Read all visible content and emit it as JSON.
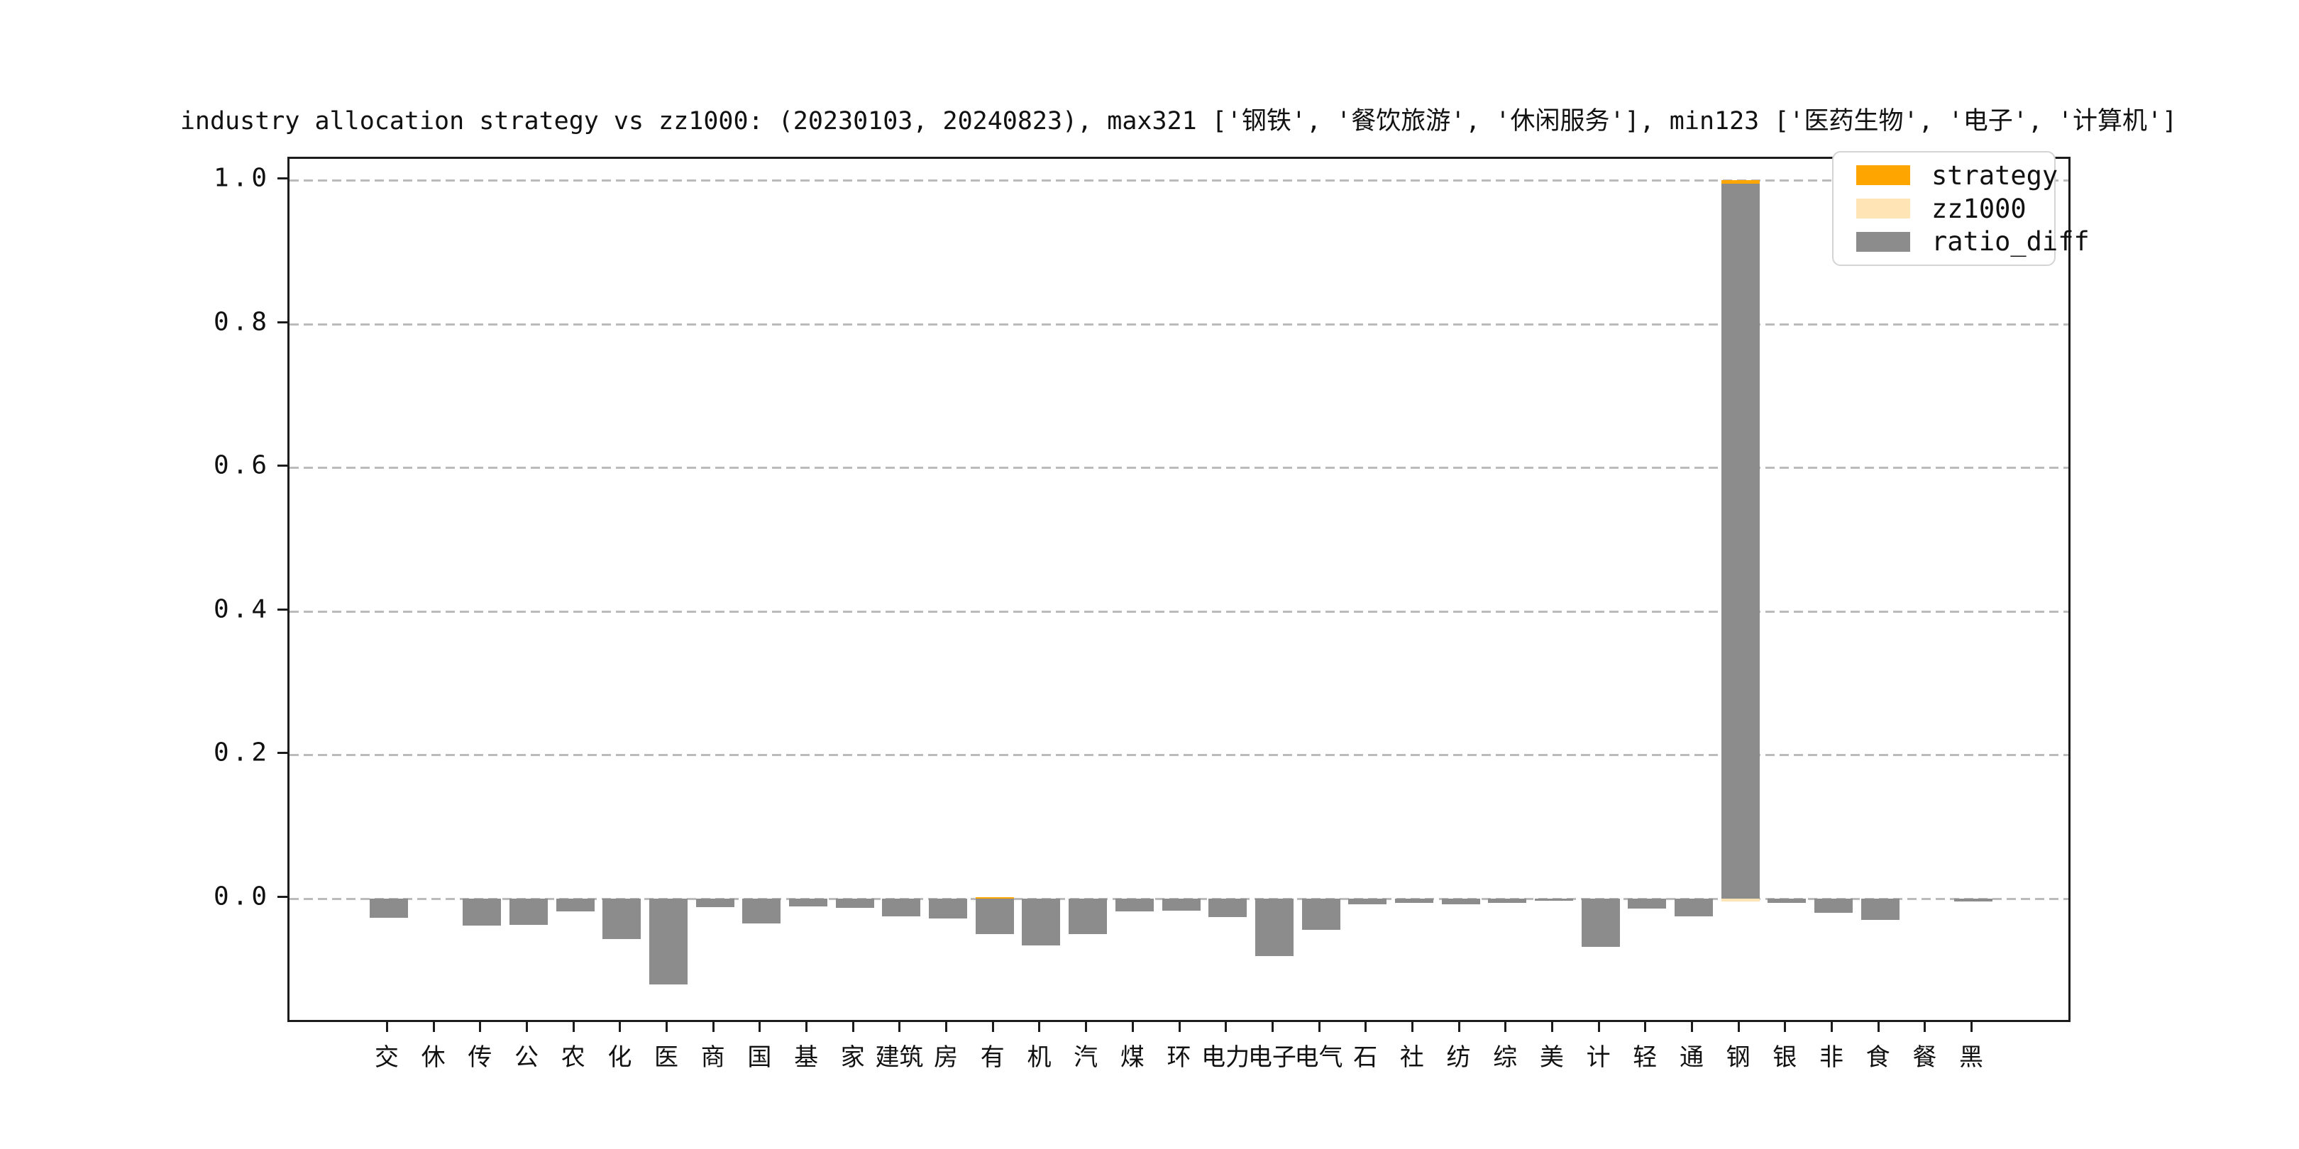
{
  "title": "industry allocation strategy vs zz1000: (20230103, 20240823), max321 ['钢铁', '餐饮旅游', '休闲服务'], min123 ['医药生物', '电子', '计算机']",
  "legend": {
    "items": [
      {
        "label": "strategy",
        "color": "#FFA500"
      },
      {
        "label": "zz1000",
        "color": "#FFE4B5"
      },
      {
        "label": "ratio_diff",
        "color": "#8c8c8c"
      }
    ]
  },
  "axis": {
    "yticks": [
      "0.0",
      "0.2",
      "0.4",
      "0.6",
      "0.8",
      "1.0"
    ],
    "grid_color": "#bbbbbb",
    "spine_color": "#1c1c1c"
  },
  "chart_data": {
    "type": "bar",
    "title": "industry allocation strategy vs zz1000: (20230103, 20240823), max321 ['钢铁', '餐饮旅游', '休闲服务'], min123 ['医药生物', '电子', '计算机']",
    "categories": [
      "交",
      "休",
      "传",
      "公",
      "农",
      "化",
      "医",
      "商",
      "国",
      "基",
      "家",
      "建筑",
      "房",
      "有",
      "机",
      "汽",
      "煤",
      "环",
      "电力",
      "电子",
      "电气",
      "石",
      "社",
      "纺",
      "综",
      "美",
      "计",
      "轻",
      "通",
      "钢",
      "银",
      "非",
      "食",
      "餐",
      "黑"
    ],
    "series": [
      {
        "name": "strategy",
        "color": "#FFA500",
        "values": [
          0,
          0,
          0,
          0,
          0,
          0,
          0,
          0,
          0,
          0,
          0,
          0,
          0,
          0.002,
          0,
          0,
          0,
          0,
          0,
          0,
          0,
          0,
          0,
          0,
          0,
          0,
          0,
          0,
          0,
          1.0,
          0,
          0,
          0,
          0,
          0
        ]
      },
      {
        "name": "zz1000",
        "color": "#FFE4B5",
        "values": [
          0,
          0,
          0,
          0,
          0,
          0,
          0,
          0,
          0,
          0,
          0,
          0,
          0,
          0,
          0,
          0,
          0,
          0,
          0,
          0,
          0,
          0,
          0,
          0,
          0,
          0,
          0,
          0,
          0,
          0.004,
          0,
          0,
          0,
          0,
          0
        ]
      },
      {
        "name": "ratio_diff",
        "color": "#8c8c8c",
        "values": [
          -0.027,
          0,
          -0.038,
          -0.037,
          -0.018,
          -0.056,
          -0.12,
          -0.012,
          -0.035,
          -0.011,
          -0.013,
          -0.025,
          -0.028,
          -0.05,
          -0.065,
          -0.05,
          -0.018,
          -0.017,
          -0.026,
          -0.08,
          -0.044,
          -0.008,
          -0.006,
          -0.008,
          -0.006,
          -0.003,
          -0.067,
          -0.014,
          -0.025,
          0.995,
          -0.006,
          -0.02,
          -0.03,
          0,
          -0.004
        ]
      }
    ],
    "xlabel": "",
    "ylabel": "",
    "ylim": [
      -0.175,
      1.03
    ],
    "grid": "horizontal dashed",
    "legend_position": "upper right"
  }
}
